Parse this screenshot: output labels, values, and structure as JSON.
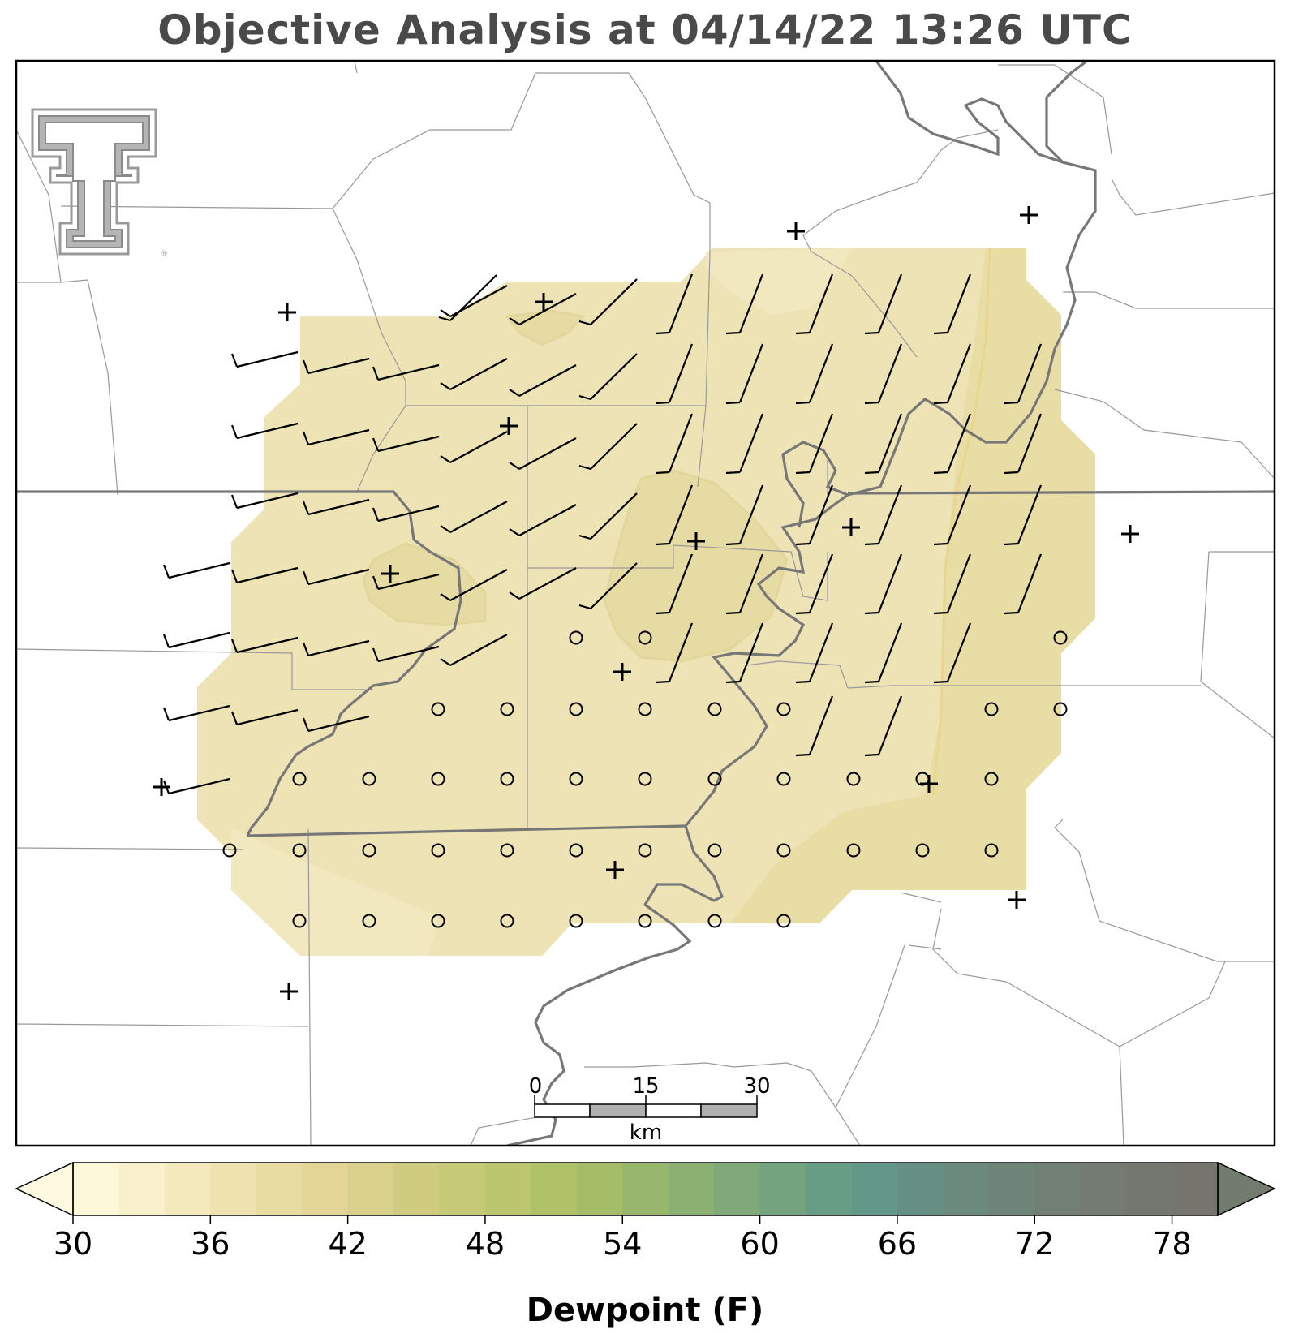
{
  "title": "Objective Analysis at 04/14/22 13:26 UTC",
  "colorbar": {
    "label": "Dewpoint (F)",
    "ticks": [
      "30",
      "36",
      "42",
      "48",
      "54",
      "60",
      "66",
      "72",
      "78"
    ],
    "min": 30,
    "max": 80,
    "step": 2,
    "colors": [
      "#fdf8d8",
      "#f9f1cc",
      "#f3e9bd",
      "#eee2af",
      "#e9dca2",
      "#e2d596",
      "#d8d08b",
      "#cfcc80",
      "#c6ca77",
      "#bbc66e",
      "#b0c268",
      "#a5bd67",
      "#98b76d",
      "#8cb072",
      "#7fa978",
      "#73a37f",
      "#689d85",
      "#629888",
      "#669083",
      "#6b897d",
      "#6f8479",
      "#717f75",
      "#737b72",
      "#74776f",
      "#75746d"
    ],
    "under_color": "#fefae0",
    "over_color": "#737a6e"
  },
  "scale_bar": {
    "labels": [
      "0",
      "15",
      "30"
    ],
    "unit": "km"
  },
  "map": {
    "dewpoint_field_colors": [
      "#f3e9bd",
      "#eee2af",
      "#e9dca2"
    ],
    "station_symbol": "plus",
    "calm_symbol": "circle",
    "wind_barb_color": "#000000"
  },
  "logo": {
    "name": "texas-tech-double-t-logo",
    "color": "#9a9a9a"
  }
}
